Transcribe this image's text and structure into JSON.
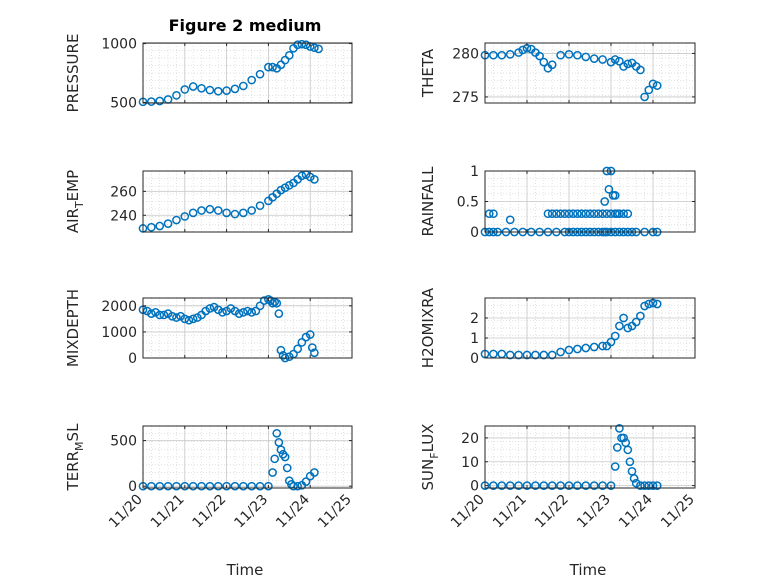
{
  "title": "Figure 2 medium",
  "x_tick_labels": [
    "11/20",
    "11/21",
    "11/22",
    "11/23",
    "11/24",
    "11/25"
  ],
  "x_label": "Time",
  "marker_color": "#0072BD",
  "chart_data": [
    {
      "type": "scatter",
      "ylabel": "PRESSURE",
      "ylim": [
        495,
        1005
      ],
      "yticks": [
        500,
        1000
      ],
      "grid": true,
      "x": [
        0.0,
        0.2,
        0.4,
        0.6,
        0.8,
        1.0,
        1.2,
        1.4,
        1.6,
        1.8,
        2.0,
        2.2,
        2.4,
        2.6,
        2.8,
        3.0,
        3.1,
        3.2,
        3.3,
        3.4,
        3.5,
        3.6,
        3.7,
        3.8,
        3.9,
        4.0,
        4.1,
        4.2
      ],
      "y": [
        505,
        507,
        512,
        525,
        560,
        610,
        635,
        620,
        605,
        595,
        600,
        615,
        640,
        690,
        740,
        800,
        800,
        790,
        820,
        860,
        900,
        960,
        990,
        995,
        990,
        975,
        965,
        955
      ]
    },
    {
      "type": "scatter",
      "ylabel": "THETA",
      "ylim": [
        274.3,
        281.2
      ],
      "yticks": [
        275,
        280
      ],
      "grid": true,
      "x": [
        0.0,
        0.2,
        0.4,
        0.6,
        0.8,
        0.9,
        1.0,
        1.1,
        1.2,
        1.3,
        1.4,
        1.5,
        1.6,
        1.8,
        2.0,
        2.2,
        2.4,
        2.6,
        2.8,
        3.0,
        3.1,
        3.2,
        3.3,
        3.4,
        3.5,
        3.6,
        3.7,
        3.8,
        3.9,
        4.0,
        4.1
      ],
      "y": [
        279.8,
        279.8,
        279.8,
        279.9,
        280.1,
        280.4,
        280.6,
        280.5,
        280.1,
        279.7,
        279.0,
        278.3,
        278.7,
        279.8,
        279.9,
        279.8,
        279.6,
        279.4,
        279.3,
        279.0,
        279.3,
        279.1,
        278.5,
        278.8,
        278.9,
        278.5,
        278.1,
        275.0,
        275.8,
        276.5,
        276.3
      ]
    },
    {
      "type": "scatter",
      "ylabel": "AIR_TEMP",
      "ylim": [
        226,
        277
      ],
      "yticks": [
        240,
        260
      ],
      "grid": true,
      "x": [
        0.0,
        0.2,
        0.4,
        0.6,
        0.8,
        1.0,
        1.2,
        1.4,
        1.6,
        1.8,
        2.0,
        2.2,
        2.4,
        2.6,
        2.8,
        3.0,
        3.1,
        3.2,
        3.3,
        3.4,
        3.5,
        3.6,
        3.7,
        3.8,
        3.9,
        4.0,
        4.1
      ],
      "y": [
        229,
        230,
        231,
        233,
        236,
        239,
        242,
        244,
        245,
        244,
        242,
        241,
        242,
        244,
        248,
        252,
        255,
        258,
        261,
        263,
        265,
        267,
        270,
        273,
        274,
        272,
        270
      ]
    },
    {
      "type": "scatter",
      "ylabel": "RAINFALL",
      "ylim": [
        0,
        1
      ],
      "yticks": [
        0,
        0.5,
        1
      ],
      "grid": true,
      "x": [
        0.0,
        0.1,
        0.2,
        0.3,
        0.5,
        0.7,
        0.9,
        1.1,
        1.3,
        1.5,
        1.7,
        1.9,
        2.0,
        2.1,
        2.2,
        2.3,
        2.4,
        2.5,
        2.6,
        2.7,
        2.8,
        2.85,
        2.9,
        3.0,
        3.1,
        3.2,
        3.3,
        3.4,
        3.5,
        3.6,
        3.8,
        4.0,
        4.1,
        0.1,
        0.2,
        0.6,
        1.5,
        1.6,
        1.7,
        1.8,
        1.9,
        2.0,
        2.1,
        2.2,
        2.3,
        2.4,
        2.5,
        2.6,
        2.7,
        2.8,
        2.9,
        3.0,
        3.1,
        3.2,
        3.3,
        3.4,
        2.9,
        3.0,
        3.1,
        2.95,
        3.05,
        2.85,
        3.15
      ],
      "y": [
        0,
        0,
        0,
        0,
        0,
        0,
        0,
        0,
        0,
        0,
        0,
        0,
        0,
        0,
        0,
        0,
        0,
        0,
        0,
        0,
        0,
        0,
        0,
        0,
        0,
        0,
        0,
        0,
        0,
        0,
        0,
        0,
        0,
        0.3,
        0.3,
        0.2,
        0.3,
        0.3,
        0.3,
        0.3,
        0.3,
        0.3,
        0.3,
        0.3,
        0.3,
        0.3,
        0.3,
        0.3,
        0.3,
        0.3,
        0.3,
        0.3,
        0.3,
        0.3,
        0.3,
        0.3,
        1.0,
        1.0,
        0.6,
        0.7,
        0.6,
        0.5,
        0.3
      ]
    },
    {
      "type": "scatter",
      "ylabel": "MIXDEPTH",
      "ylim": [
        0,
        2300
      ],
      "yticks": [
        0,
        1000,
        2000
      ],
      "grid": true,
      "x": [
        0.0,
        0.1,
        0.2,
        0.3,
        0.4,
        0.5,
        0.6,
        0.7,
        0.8,
        0.9,
        1.0,
        1.1,
        1.2,
        1.3,
        1.4,
        1.5,
        1.6,
        1.7,
        1.8,
        1.9,
        2.0,
        2.1,
        2.2,
        2.3,
        2.4,
        2.5,
        2.6,
        2.7,
        2.8,
        2.9,
        3.0,
        3.05,
        3.1,
        3.15,
        3.2,
        3.25,
        3.3,
        3.35,
        3.4,
        3.5,
        3.6,
        3.7,
        3.8,
        3.9,
        4.0,
        4.05,
        4.1
      ],
      "y": [
        1850,
        1800,
        1700,
        1750,
        1650,
        1650,
        1700,
        1600,
        1550,
        1600,
        1500,
        1450,
        1500,
        1550,
        1650,
        1800,
        1900,
        1950,
        1850,
        1750,
        1800,
        1900,
        1800,
        1700,
        1750,
        1800,
        1750,
        1800,
        2000,
        2200,
        2250,
        2200,
        2100,
        2150,
        2100,
        1700,
        300,
        100,
        0,
        50,
        150,
        350,
        600,
        800,
        900,
        400,
        200
      ]
    },
    {
      "type": "scatter",
      "ylabel": "H2OMIXRA",
      "ylim": [
        0,
        3
      ],
      "yticks": [
        0,
        1,
        2
      ],
      "grid": true,
      "x": [
        0.0,
        0.2,
        0.4,
        0.6,
        0.8,
        1.0,
        1.2,
        1.4,
        1.6,
        1.8,
        2.0,
        2.2,
        2.4,
        2.6,
        2.8,
        2.9,
        3.0,
        3.1,
        3.2,
        3.3,
        3.4,
        3.5,
        3.6,
        3.7,
        3.8,
        3.9,
        4.0,
        4.1
      ],
      "y": [
        0.2,
        0.2,
        0.2,
        0.15,
        0.15,
        0.15,
        0.15,
        0.15,
        0.15,
        0.3,
        0.4,
        0.45,
        0.5,
        0.55,
        0.6,
        0.6,
        0.8,
        1.1,
        1.6,
        2.0,
        1.5,
        1.6,
        1.8,
        2.1,
        2.6,
        2.7,
        2.75,
        2.7
      ]
    },
    {
      "type": "scatter",
      "ylabel": "TERR_MSL",
      "ylim": [
        -20,
        660
      ],
      "yticks": [
        0,
        500
      ],
      "grid": true,
      "x": [
        0.0,
        0.2,
        0.4,
        0.6,
        0.8,
        1.0,
        1.2,
        1.4,
        1.6,
        1.8,
        2.0,
        2.2,
        2.4,
        2.6,
        2.8,
        3.0,
        3.1,
        3.15,
        3.2,
        3.25,
        3.3,
        3.35,
        3.4,
        3.45,
        3.5,
        3.55,
        3.6,
        3.7,
        3.8,
        3.9,
        4.0,
        4.1
      ],
      "y": [
        0,
        0,
        0,
        0,
        0,
        0,
        0,
        0,
        0,
        0,
        0,
        0,
        0,
        0,
        0,
        0,
        150,
        300,
        580,
        480,
        400,
        350,
        320,
        200,
        60,
        20,
        0,
        0,
        10,
        50,
        110,
        150
      ]
    },
    {
      "type": "scatter",
      "ylabel": "SUN_FLUX",
      "ylim": [
        -1,
        25
      ],
      "yticks": [
        0,
        10,
        20
      ],
      "grid": true,
      "x": [
        0.0,
        0.2,
        0.4,
        0.6,
        0.8,
        1.0,
        1.2,
        1.4,
        1.6,
        1.8,
        2.0,
        2.2,
        2.4,
        2.6,
        2.8,
        3.0,
        3.1,
        3.15,
        3.2,
        3.25,
        3.3,
        3.35,
        3.4,
        3.45,
        3.5,
        3.55,
        3.6,
        3.7,
        3.8,
        3.9,
        4.0,
        4.1
      ],
      "y": [
        0,
        0,
        0,
        0,
        0,
        0,
        0,
        0,
        0,
        0,
        0,
        0,
        0,
        0,
        0,
        0,
        8,
        16,
        24,
        20,
        20,
        18,
        15,
        10,
        6,
        3,
        1,
        0,
        0,
        0,
        0,
        0
      ]
    }
  ]
}
